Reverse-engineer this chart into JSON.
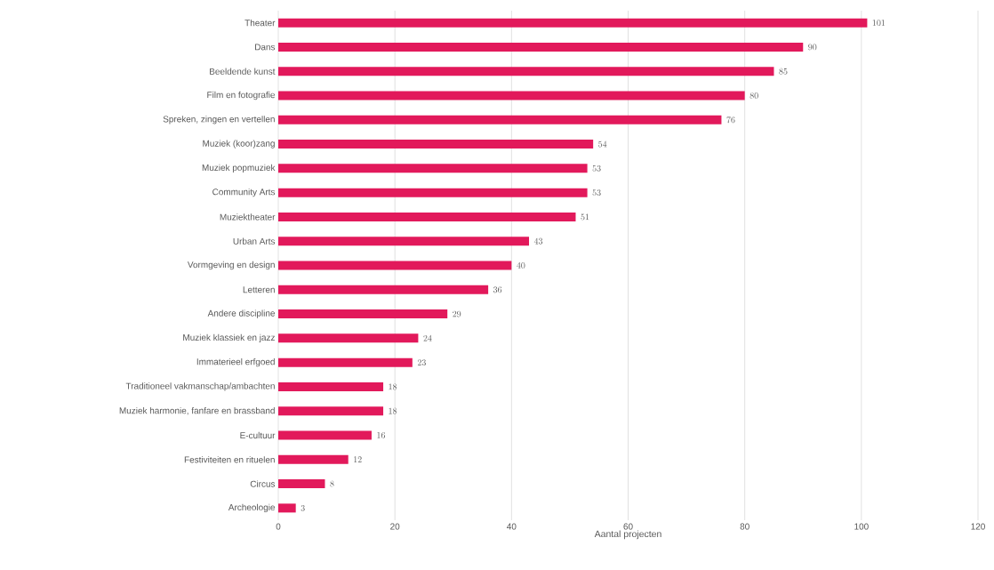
{
  "chart_data": {
    "type": "bar",
    "orientation": "horizontal",
    "xlabel": "Aantal projecten",
    "categories": [
      "Theater",
      "Dans",
      "Beeldende kunst",
      "Film en fotografie",
      "Spreken, zingen en vertellen",
      "Muziek (koor)zang",
      "Muziek popmuziek",
      "Community Arts",
      "Muziektheater",
      "Urban Arts",
      "Vormgeving en design",
      "Letteren",
      "Andere discipline",
      "Muziek klassiek en jazz",
      "Immaterieel erfgoed",
      "Traditioneel vakmanschap/ambachten",
      "Muziek harmonie, fanfare en brassband",
      "E-cultuur",
      "Festiviteiten en rituelen",
      "Circus",
      "Archeologie"
    ],
    "values": [
      101,
      90,
      85,
      80,
      76,
      54,
      53,
      53,
      51,
      43,
      40,
      36,
      29,
      24,
      23,
      18,
      18,
      16,
      12,
      8,
      3
    ],
    "color": "#e2195b",
    "xlim": [
      0,
      120
    ],
    "xticks": [
      0,
      20,
      40,
      60,
      80,
      100,
      120
    ],
    "grid": "x",
    "data_labels": true
  }
}
